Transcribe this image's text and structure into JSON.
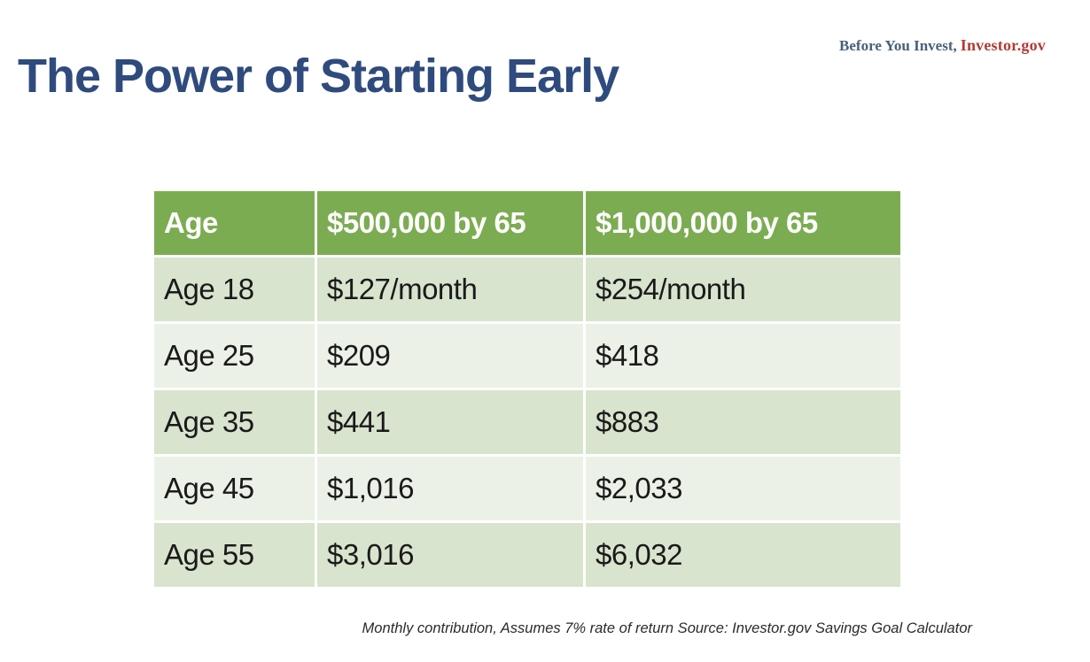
{
  "slide": {
    "title": "The Power of Starting Early",
    "footnote": "Monthly contribution, Assumes 7% rate of return Source: Investor.gov Savings Goal Calculator"
  },
  "logo": {
    "prefix": "Before You Invest,",
    "brand": "Investor.gov"
  },
  "table": {
    "headers": [
      "Age",
      "$500,000 by 65",
      "$1,000,000 by 65"
    ],
    "rows": [
      [
        "Age 18",
        "$127/month",
        "$254/month"
      ],
      [
        "Age 25",
        "$209",
        "$418"
      ],
      [
        "Age 35",
        "$441",
        "$883"
      ],
      [
        "Age 45",
        "$1,016",
        "$2,033"
      ],
      [
        "Age 55",
        "$3,016",
        "$6,032"
      ]
    ]
  },
  "colors": {
    "title_text": "#2F4B7E",
    "header_bg": "#7CAC52",
    "header_text": "#FFFFFF",
    "row_odd_bg": "#D8E4CE",
    "row_even_bg": "#ECF1E7",
    "body_text": "#1A1A1A",
    "logo_prefix_text": "#47617A",
    "logo_brand_text": "#B23B34",
    "footnote_text": "#2B2B2B"
  }
}
